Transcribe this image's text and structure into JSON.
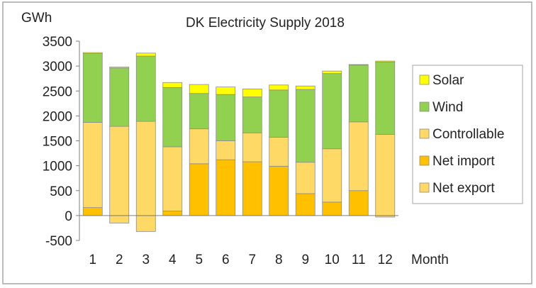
{
  "chart_data": {
    "type": "bar",
    "stacked": true,
    "title": "DK Electricity Supply 2018",
    "ylabel": "GWh",
    "xlabel": "Month",
    "ylim": [
      -500,
      3500
    ],
    "yticks": [
      -500,
      0,
      500,
      1000,
      1500,
      2000,
      2500,
      3000,
      3500
    ],
    "grid": false,
    "legend_position": "right",
    "categories": [
      "1",
      "2",
      "3",
      "4",
      "5",
      "6",
      "7",
      "8",
      "9",
      "10",
      "11",
      "12"
    ],
    "series": [
      {
        "name": "Net export",
        "color": "#ffd966",
        "values": [
          0,
          -150,
          -320,
          0,
          0,
          0,
          0,
          0,
          0,
          0,
          0,
          -30
        ]
      },
      {
        "name": "Net import",
        "color": "#ffc000",
        "values": [
          160,
          0,
          0,
          90,
          1040,
          1120,
          1080,
          990,
          440,
          270,
          500,
          0
        ]
      },
      {
        "name": "Controllable",
        "color": "#ffd966",
        "values": [
          1710,
          1790,
          1890,
          1290,
          700,
          380,
          580,
          580,
          630,
          1070,
          1380,
          1630
        ]
      },
      {
        "name": "Wind",
        "color": "#92d050",
        "values": [
          1380,
          1170,
          1310,
          1190,
          710,
          930,
          720,
          950,
          1460,
          1510,
          1140,
          1450
        ]
      },
      {
        "name": "Solar",
        "color": "#ffff00",
        "values": [
          20,
          20,
          60,
          100,
          180,
          150,
          160,
          100,
          70,
          50,
          10,
          20
        ]
      }
    ],
    "legend_order": [
      "Solar",
      "Wind",
      "Controllable",
      "Net import",
      "Net export"
    ]
  }
}
